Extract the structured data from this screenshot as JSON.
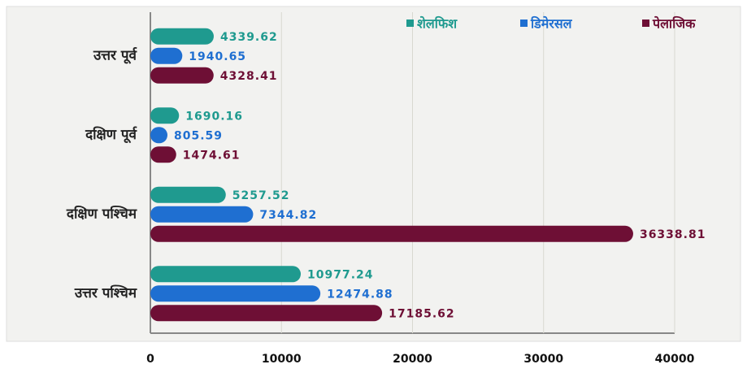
{
  "chart_data": {
    "type": "hbar",
    "categories": [
      "उत्तर पूर्व",
      "दक्षिण पूर्व",
      "दक्षिण पश्चिम",
      "उत्तर पश्चिम"
    ],
    "series": [
      {
        "name": "शेलफिश",
        "color": "#1f9a8f",
        "values": [
          4339.62,
          1690.16,
          5257.52,
          10977.24
        ]
      },
      {
        "name": "डिमेरसल",
        "color": "#1f6fd1",
        "values": [
          1940.65,
          805.59,
          7344.82,
          12474.88
        ]
      },
      {
        "name": "पेलाजिक",
        "color": "#6e0f35",
        "values": [
          4328.41,
          1474.61,
          36338.81,
          17185.62
        ]
      }
    ],
    "xlim": [
      0,
      40000
    ],
    "xticks": [
      0,
      10000,
      20000,
      30000,
      40000
    ],
    "grid": true,
    "legend": "top-right"
  }
}
